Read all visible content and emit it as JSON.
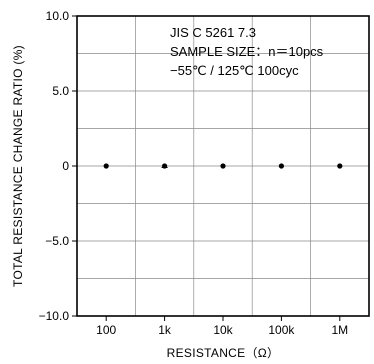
{
  "chart_data": {
    "type": "scatter",
    "categories": [
      "100",
      "1k",
      "10k",
      "100k",
      "1M"
    ],
    "values": [
      0,
      0,
      0,
      0,
      0
    ],
    "error_bars": [
      0,
      0.1,
      0,
      0,
      0
    ],
    "ylim": [
      -10.0,
      10.0
    ],
    "yticks": [
      -10.0,
      -5.0,
      0,
      5.0,
      10.0
    ],
    "ytick_labels": [
      "−10.0",
      "−5.0",
      "0",
      "5.0",
      "10.0"
    ],
    "ylabel": "TOTAL  RESISTANCE  CHANGE RATIO  (%)",
    "xlabel": "RESISTANCE（Ω）",
    "grid": true,
    "annotations": [
      "JIS  C  5261  7.3",
      "SAMPLE  SIZE：n＝10pcs",
      "−55℃ / 125℃  100cyc"
    ]
  }
}
